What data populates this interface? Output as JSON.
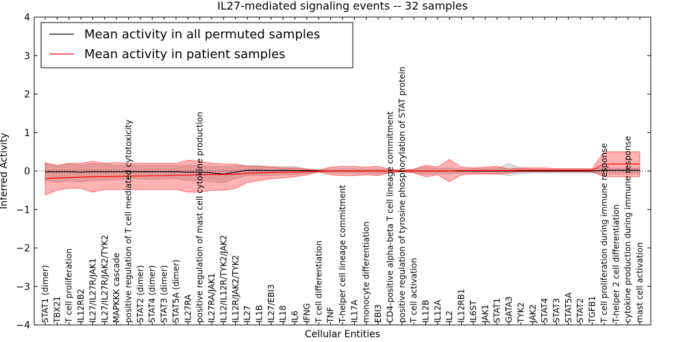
{
  "chart_data": {
    "type": "line",
    "title": "IL27-mediated signaling events -- 32 samples",
    "xlabel": "Cellular Entities",
    "ylabel": "Inferred Activity",
    "ylim": [
      -4,
      4
    ],
    "yticks": [
      -4,
      -3,
      -2,
      -1,
      0,
      1,
      2,
      3,
      4
    ],
    "legend": {
      "location": "top-left",
      "entries": [
        {
          "name": "Mean activity in all permuted samples",
          "color": "#000000"
        },
        {
          "name": "Mean activity in patient samples",
          "color": "#ff0000"
        }
      ]
    },
    "categories": [
      "STAT1 (dimer)",
      "TBX21",
      "T cell proliferation",
      "IL12RB2",
      "IL27/IL27R/JAK1",
      "IL27/IL27R/JAK2/TYK2",
      "MAPKKK cascade",
      "positive regulation of T cell mediated cytotoxicity",
      "STAT2 (dimer)",
      "STAT4 (dimer)",
      "STAT3 (dimer)",
      "STAT5A (dimer)",
      "IL27RA",
      "positive regulation of mast cell cytokine production",
      "IL27RA/JAK1",
      "IL12/IL12R/TYK2/JAK2",
      "IL12R/JAK2/TYK2",
      "IL27",
      "IL1B",
      "IL27/EBI3",
      "IL18",
      "IL6",
      "IFNG",
      "T cell differentiation",
      "TNF",
      "T-helper cell lineage commitment",
      "IL17A",
      "monocyte differentiation",
      "EBI3",
      "CD4-positive alpha-beta T cell lineage commitment",
      "positive regulation of tyrosine phosphorylation of STAT protein",
      "T cell activation",
      "IL12B",
      "IL12A",
      "IL2",
      "IL12RB1",
      "IL6ST",
      "JAK1",
      "STAT1",
      "GATA3",
      "TYK2",
      "JAK2",
      "STAT4",
      "STAT3",
      "STAT5A",
      "STAT2",
      "TGFB1",
      "T cell proliferation during immune response",
      "T-helper 2 cell differentiation",
      "cytokine production during immune response",
      "mast cell activation"
    ],
    "series": [
      {
        "name": "Mean activity in all permuted samples",
        "color": "#000000",
        "values": [
          -0.02,
          -0.02,
          -0.02,
          -0.03,
          -0.02,
          -0.02,
          -0.02,
          -0.02,
          -0.02,
          -0.02,
          -0.02,
          -0.02,
          -0.03,
          -0.03,
          -0.05,
          -0.08,
          -0.03,
          0.02,
          0.02,
          0.01,
          0.02,
          0.01,
          0.01,
          0.0,
          0.0,
          0.0,
          0.0,
          0.0,
          0.0,
          0.0,
          0.0,
          0.0,
          0.0,
          0.0,
          0.0,
          0.0,
          0.0,
          0.0,
          0.0,
          0.0,
          0.0,
          0.0,
          0.0,
          0.0,
          0.0,
          0.0,
          0.0,
          0.02,
          0.02,
          0.02,
          0.02
        ],
        "lower": [
          -0.25,
          -0.3,
          -0.25,
          -0.28,
          -0.25,
          -0.25,
          -0.22,
          -0.2,
          -0.22,
          -0.22,
          -0.2,
          -0.2,
          -0.25,
          -0.25,
          -0.28,
          -0.3,
          -0.2,
          -0.12,
          -0.12,
          -0.12,
          -0.1,
          -0.1,
          -0.06,
          -0.04,
          -0.05,
          -0.06,
          -0.06,
          -0.06,
          -0.07,
          -0.04,
          -0.02,
          -0.05,
          -0.08,
          -0.06,
          -0.08,
          -0.05,
          -0.06,
          -0.06,
          -0.08,
          -0.12,
          -0.08,
          -0.05,
          -0.05,
          -0.05,
          -0.05,
          -0.05,
          -0.05,
          -0.08,
          -0.08,
          -0.08,
          -0.08
        ],
        "upper": [
          0.22,
          0.12,
          0.18,
          0.15,
          0.2,
          0.18,
          0.15,
          0.15,
          0.15,
          0.15,
          0.15,
          0.15,
          0.15,
          0.15,
          0.12,
          0.12,
          0.14,
          0.15,
          0.15,
          0.12,
          0.12,
          0.12,
          0.06,
          0.04,
          0.05,
          0.06,
          0.06,
          0.04,
          0.06,
          0.04,
          0.02,
          0.05,
          0.1,
          0.06,
          0.08,
          0.05,
          0.06,
          0.06,
          0.08,
          0.2,
          0.08,
          0.05,
          0.05,
          0.05,
          0.05,
          0.05,
          0.05,
          0.08,
          0.08,
          0.08,
          0.08
        ]
      },
      {
        "name": "Mean activity in patient samples",
        "color": "#ff0000",
        "values": [
          -0.2,
          -0.18,
          -0.17,
          -0.16,
          -0.15,
          -0.15,
          -0.14,
          -0.13,
          -0.13,
          -0.12,
          -0.12,
          -0.11,
          -0.11,
          -0.1,
          -0.09,
          -0.09,
          -0.08,
          -0.06,
          -0.05,
          -0.04,
          -0.03,
          -0.03,
          -0.02,
          -0.01,
          0.0,
          0.0,
          0.0,
          0.0,
          0.0,
          0.0,
          0.0,
          0.0,
          0.0,
          0.0,
          0.0,
          0.01,
          0.01,
          0.01,
          0.01,
          0.01,
          0.02,
          0.02,
          0.02,
          0.02,
          0.02,
          0.02,
          0.02,
          0.18,
          0.18,
          0.18,
          0.18
        ],
        "lower": [
          -0.62,
          -0.5,
          -0.45,
          -0.45,
          -0.55,
          -0.48,
          -0.48,
          -0.48,
          -0.48,
          -0.48,
          -0.48,
          -0.48,
          -0.55,
          -0.55,
          -0.5,
          -0.5,
          -0.45,
          -0.3,
          -0.25,
          -0.2,
          -0.18,
          -0.15,
          -0.1,
          -0.02,
          -0.1,
          -0.12,
          -0.12,
          -0.1,
          -0.12,
          -0.04,
          -0.02,
          -0.05,
          -0.15,
          -0.1,
          -0.28,
          -0.1,
          -0.08,
          -0.08,
          -0.08,
          -0.05,
          -0.02,
          -0.02,
          -0.02,
          -0.02,
          -0.02,
          -0.02,
          -0.02,
          -0.15,
          -0.15,
          -0.15,
          -0.15
        ],
        "upper": [
          0.2,
          0.15,
          0.2,
          0.2,
          0.25,
          0.2,
          0.22,
          0.2,
          0.2,
          0.2,
          0.2,
          0.2,
          0.28,
          0.25,
          0.2,
          0.18,
          0.18,
          0.12,
          0.12,
          0.1,
          0.08,
          0.08,
          0.05,
          0.02,
          0.1,
          0.12,
          0.12,
          0.1,
          0.12,
          0.04,
          0.02,
          0.05,
          0.15,
          0.1,
          0.3,
          0.1,
          0.08,
          0.1,
          0.12,
          0.05,
          0.08,
          0.08,
          0.08,
          0.06,
          0.06,
          0.06,
          0.06,
          0.5,
          0.5,
          0.5,
          0.5
        ]
      }
    ],
    "baseline": {
      "value": 0,
      "style": "dotted"
    }
  }
}
